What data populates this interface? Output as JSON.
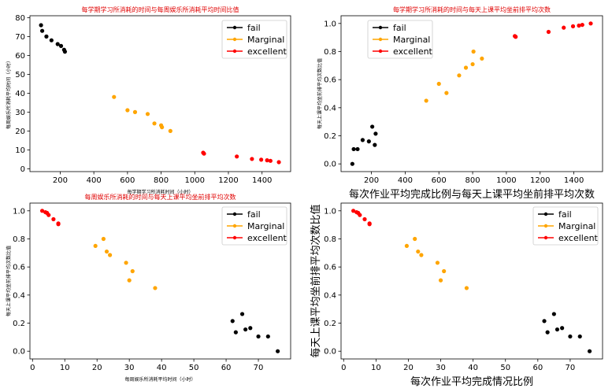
{
  "legend": {
    "entries": [
      {
        "label": "fail",
        "color": "#000000"
      },
      {
        "label": "Marginal",
        "color": "#ffa500"
      },
      {
        "label": "excellent",
        "color": "#ff0000"
      }
    ],
    "placement": "top-right"
  },
  "chart_data": [
    {
      "type": "scatter",
      "title": "每学期学习所消耗的时间与每周娱乐所消耗平均时间比值",
      "xlabel": "每学期学习所消耗时间（小时）",
      "ylabel": "每周娱乐所消耗平均时间（小时）",
      "xlim": [
        20,
        1570
      ],
      "ylim": [
        -1.5,
        81
      ],
      "xticks": [
        200,
        400,
        600,
        800,
        1000,
        1200,
        1400
      ],
      "yticks": [
        0,
        10,
        20,
        30,
        40,
        50,
        60,
        70,
        80
      ],
      "label_size": "small",
      "series": [
        {
          "name": "fail",
          "color": "#000000",
          "x": [
            86,
            93,
            118,
            148,
            185,
            205,
            223,
            228
          ],
          "y": [
            76,
            73,
            70,
            68,
            66,
            65,
            63,
            62
          ]
        },
        {
          "name": "Marginal",
          "color": "#ffa500",
          "x": [
            520,
            600,
            645,
            720,
            760,
            800,
            805,
            855
          ],
          "y": [
            38,
            31,
            30,
            29,
            24,
            23,
            22,
            20
          ]
        },
        {
          "name": "excellent",
          "color": "#ff0000",
          "x": [
            1050,
            1055,
            1250,
            1340,
            1395,
            1430,
            1450,
            1500
          ],
          "y": [
            8.5,
            8,
            6.5,
            5.2,
            4.8,
            4.5,
            4.2,
            3.5
          ]
        }
      ]
    },
    {
      "type": "scatter",
      "title": "每学期学习所消耗的时间与每天上课平均坐前排平均次数",
      "xlabel": "每次作业平均完成比例与每天上课平均坐前排平均次数",
      "ylabel": "每天上课平均坐前排平均次数比值",
      "xlim": [
        20,
        1570
      ],
      "ylim": [
        -0.055,
        1.055
      ],
      "xticks": [
        200,
        400,
        600,
        800,
        1000,
        1200,
        1400
      ],
      "yticks": [
        0.0,
        0.2,
        0.4,
        0.6,
        0.8,
        1.0
      ],
      "label_size": "mixed",
      "series": [
        {
          "name": "fail",
          "color": "#000000",
          "x": [
            87,
            95,
            118,
            148,
            185,
            205,
            220,
            225
          ],
          "y": [
            0.0,
            0.105,
            0.105,
            0.17,
            0.16,
            0.265,
            0.135,
            0.215
          ]
        },
        {
          "name": "Marginal",
          "color": "#ffa500",
          "x": [
            525,
            600,
            645,
            720,
            760,
            800,
            805,
            855
          ],
          "y": [
            0.45,
            0.57,
            0.505,
            0.63,
            0.685,
            0.71,
            0.8,
            0.75
          ]
        },
        {
          "name": "excellent",
          "color": "#ff0000",
          "x": [
            1050,
            1055,
            1250,
            1340,
            1395,
            1430,
            1450,
            1500
          ],
          "y": [
            0.91,
            0.905,
            0.94,
            0.97,
            0.98,
            0.985,
            0.99,
            1.0
          ]
        }
      ]
    },
    {
      "type": "scatter",
      "title": "每周娱乐所消耗的时间与每天上课平均坐前排平均次数",
      "xlabel": "每周娱乐所消耗平均时间（小时）",
      "ylabel": "每天上课平均坐前排平均次数比值",
      "xlim": [
        -0.8,
        80
      ],
      "ylim": [
        -0.055,
        1.055
      ],
      "xticks": [
        0,
        10,
        20,
        30,
        40,
        50,
        60,
        70
      ],
      "yticks": [
        0.0,
        0.2,
        0.4,
        0.6,
        0.8,
        1.0
      ],
      "label_size": "small",
      "series": [
        {
          "name": "fail",
          "color": "#000000",
          "x": [
            62,
            63,
            65,
            66,
            67.5,
            70,
            73,
            76
          ],
          "y": [
            0.215,
            0.135,
            0.265,
            0.155,
            0.165,
            0.105,
            0.105,
            0.0
          ]
        },
        {
          "name": "Marginal",
          "color": "#ffa500",
          "x": [
            19.5,
            22,
            23,
            24,
            29,
            30,
            31,
            38
          ],
          "y": [
            0.75,
            0.8,
            0.71,
            0.685,
            0.63,
            0.505,
            0.57,
            0.45
          ]
        },
        {
          "name": "excellent",
          "color": "#ff0000",
          "x": [
            3,
            4,
            4.5,
            5,
            6.5,
            8,
            8
          ],
          "y": [
            1.0,
            0.99,
            0.985,
            0.97,
            0.94,
            0.91,
            0.905
          ]
        }
      ]
    },
    {
      "type": "scatter",
      "title": "",
      "xlabel": "每次作业平均完成情况比例",
      "ylabel": "每天上课平均坐前排平均次数比值",
      "xlim": [
        -0.8,
        80
      ],
      "ylim": [
        -0.055,
        1.055
      ],
      "xticks": [
        0,
        10,
        20,
        30,
        40,
        50,
        60,
        70
      ],
      "yticks": [
        0.0,
        0.2,
        0.4,
        0.6,
        0.8,
        1.0
      ],
      "label_size": "big",
      "series": [
        {
          "name": "fail",
          "color": "#000000",
          "x": [
            62,
            63,
            65,
            66,
            67.5,
            70,
            73,
            76
          ],
          "y": [
            0.215,
            0.135,
            0.265,
            0.155,
            0.165,
            0.105,
            0.105,
            0.0
          ]
        },
        {
          "name": "Marginal",
          "color": "#ffa500",
          "x": [
            19.5,
            22,
            23,
            24,
            29,
            30,
            31,
            38
          ],
          "y": [
            0.75,
            0.8,
            0.71,
            0.685,
            0.63,
            0.505,
            0.57,
            0.45
          ]
        },
        {
          "name": "excellent",
          "color": "#ff0000",
          "x": [
            3,
            4,
            4.5,
            5,
            6.5,
            8,
            8
          ],
          "y": [
            1.0,
            0.99,
            0.985,
            0.97,
            0.94,
            0.91,
            0.905
          ]
        }
      ]
    }
  ]
}
